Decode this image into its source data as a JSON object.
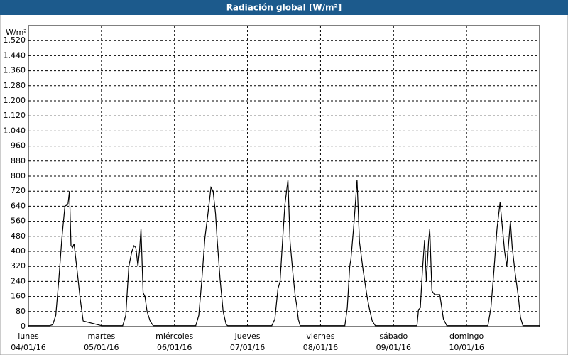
{
  "chart_data": {
    "type": "line",
    "title": "Radiación global [W/m²]",
    "y_label": "W/m²",
    "xlim": [
      0,
      168
    ],
    "ylim": [
      0,
      1600
    ],
    "xticks": [
      {
        "value": 0,
        "label": "lunes",
        "date": "04/01/16"
      },
      {
        "value": 24,
        "label": "martes",
        "date": "05/01/16"
      },
      {
        "value": 48,
        "label": "miércoles",
        "date": "06/01/16"
      },
      {
        "value": 72,
        "label": "jueves",
        "date": "07/01/16"
      },
      {
        "value": 96,
        "label": "viernes",
        "date": "08/01/16"
      },
      {
        "value": 120,
        "label": "sábado",
        "date": "09/01/16"
      },
      {
        "value": 144,
        "label": "domingo",
        "date": "10/01/16"
      }
    ],
    "yticks": [
      0,
      80,
      160,
      240,
      320,
      400,
      480,
      560,
      640,
      720,
      800,
      880,
      960,
      {
        "value": 1040,
        "label": "1.040"
      },
      {
        "value": 1120,
        "label": "1.120"
      },
      {
        "value": 1200,
        "label": "1.200"
      },
      {
        "value": 1280,
        "label": "1.280"
      },
      {
        "value": 1360,
        "label": "1.360"
      },
      {
        "value": 1440,
        "label": "1.440"
      },
      {
        "value": 1520,
        "label": "1.520"
      }
    ],
    "grid": true,
    "color": "#000000",
    "x": [
      0,
      7,
      8,
      9,
      10,
      11,
      12,
      13,
      13.5,
      14,
      14.5,
      15,
      16,
      17,
      18,
      24,
      31,
      32,
      33,
      34,
      34.7,
      35.3,
      36,
      36.5,
      37,
      37.7,
      38.3,
      39,
      40,
      41,
      48,
      55,
      56,
      57,
      58,
      59,
      60,
      60.7,
      61.5,
      62,
      63,
      64,
      65,
      65.5,
      72,
      80,
      81,
      82,
      82.7,
      83.5,
      84.3,
      85.3,
      86,
      87,
      87.7,
      88.2,
      88.7,
      89.3,
      96,
      104,
      104.8,
      105.6,
      106,
      107,
      108,
      108.8,
      110,
      111.3,
      112,
      113,
      114,
      120,
      127.7,
      128.2,
      128.8,
      129.5,
      130.2,
      130.8,
      131.5,
      131.9,
      132.6,
      133.5,
      135.2,
      136.4,
      137.5,
      144,
      151,
      152,
      153,
      154,
      155,
      155.8,
      156.5,
      157.2,
      158,
      158.4,
      159,
      160,
      161,
      161.7,
      162.5,
      168
    ],
    "values": [
      5,
      5,
      10,
      60,
      250,
      470,
      640,
      650,
      720,
      430,
      420,
      440,
      300,
      150,
      30,
      5,
      5,
      60,
      320,
      400,
      430,
      420,
      320,
      400,
      520,
      180,
      160,
      80,
      30,
      5,
      5,
      5,
      60,
      250,
      470,
      600,
      740,
      720,
      600,
      470,
      250,
      80,
      10,
      5,
      5,
      5,
      40,
      200,
      240,
      450,
      650,
      780,
      450,
      270,
      160,
      110,
      40,
      5,
      5,
      5,
      100,
      320,
      360,
      550,
      780,
      450,
      300,
      160,
      100,
      30,
      5,
      5,
      5,
      90,
      100,
      300,
      460,
      240,
      450,
      520,
      190,
      170,
      170,
      40,
      5,
      5,
      5,
      100,
      300,
      520,
      660,
      520,
      400,
      320,
      480,
      560,
      420,
      280,
      160,
      50,
      5,
      5
    ]
  }
}
